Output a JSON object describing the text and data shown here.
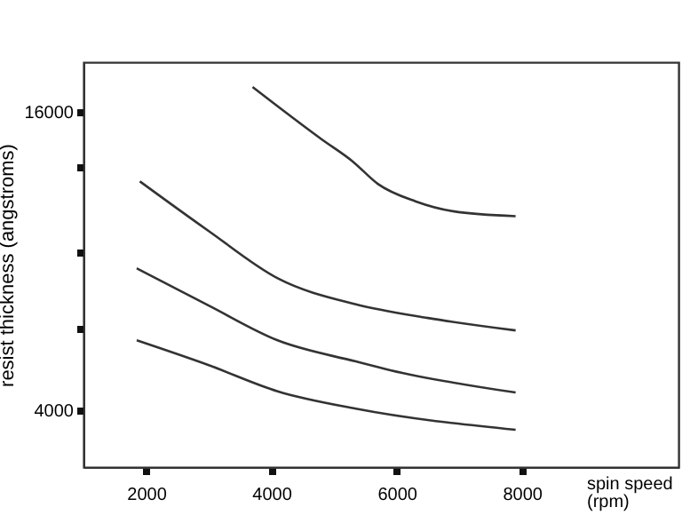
{
  "chart_data": {
    "type": "line",
    "xlabel": "spin speed (rpm)",
    "ylabel": "resist thickness (angstroms)",
    "xlim": [
      1000,
      10500
    ],
    "ylim": [
      1700,
      18000
    ],
    "xticks": [
      2000,
      4000,
      6000,
      8000
    ],
    "yticks": [
      4000,
      {
        "value": 7250,
        "label": null
      },
      {
        "value": 10350,
        "label": null
      },
      {
        "value": 13800,
        "label": null
      },
      16000
    ],
    "grid": false,
    "legend": false,
    "marker": "none",
    "line_style": "solid",
    "series": [
      {
        "color": "#333333",
        "x": [
          3700,
          4800,
          5300,
          5700,
          6300,
          6900,
          7900
        ],
        "values": [
          17000,
          14900,
          14000,
          13100,
          12400,
          12000,
          11800
        ]
      },
      {
        "color": "#333333",
        "x": [
          1900,
          3000,
          4100,
          5350,
          6500,
          7900
        ],
        "values": [
          13200,
          11200,
          9300,
          8250,
          7700,
          7200
        ]
      },
      {
        "color": "#333333",
        "x": [
          1850,
          3000,
          4100,
          5350,
          5900,
          7900
        ],
        "values": [
          9700,
          8200,
          6800,
          5950,
          5600,
          4700
        ]
      },
      {
        "color": "#333333",
        "x": [
          1850,
          3000,
          4100,
          5350,
          7900
        ],
        "values": [
          6800,
          5800,
          4750,
          4050,
          3200
        ]
      }
    ]
  }
}
